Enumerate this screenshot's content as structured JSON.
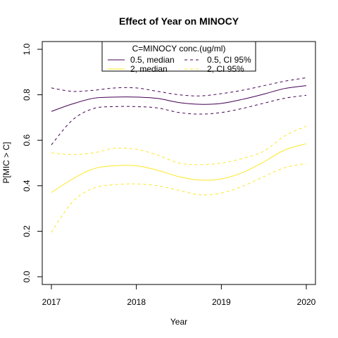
{
  "chart_data": {
    "type": "line",
    "title": "Effect of Year on MINOCY",
    "xlabel": "Year",
    "ylabel": "P[MIC > C]",
    "xlim": [
      2017,
      2020
    ],
    "ylim": [
      0,
      1
    ],
    "x_ticks": [
      "2017",
      "2018",
      "2019",
      "2020"
    ],
    "y_ticks": [
      "0.0",
      "0.2",
      "0.4",
      "0.6",
      "0.8",
      "1.0"
    ],
    "grid": false,
    "legend": {
      "title": "C=MINOCY conc.(ug/ml)",
      "placement": "top-center",
      "entries": [
        "0.5, median",
        "0.5, CI 95%",
        "2, median",
        "2, CI 95%"
      ]
    },
    "x": [
      2017.0,
      2017.25,
      2017.5,
      2017.75,
      2018.0,
      2018.25,
      2018.5,
      2018.75,
      2019.0,
      2019.25,
      2019.5,
      2019.75,
      2020.0
    ],
    "series": [
      {
        "name": "0.5, median",
        "color": "#440154",
        "dash": "solid",
        "values": [
          0.727,
          0.76,
          0.785,
          0.79,
          0.79,
          0.784,
          0.766,
          0.758,
          0.762,
          0.78,
          0.803,
          0.828,
          0.84
        ]
      },
      {
        "name": "0.5, CI 95%",
        "color": "#440154",
        "dash": "dashed",
        "values": [
          0.83,
          0.815,
          0.82,
          0.83,
          0.83,
          0.815,
          0.8,
          0.795,
          0.805,
          0.82,
          0.84,
          0.86,
          0.875
        ]
      },
      {
        "name": "0.5, CI 95%",
        "color": "#440154",
        "dash": "dashed",
        "values": [
          0.58,
          0.69,
          0.74,
          0.748,
          0.748,
          0.742,
          0.722,
          0.715,
          0.722,
          0.74,
          0.763,
          0.785,
          0.798
        ]
      },
      {
        "name": "2, median",
        "color": "#FDE725",
        "dash": "solid",
        "values": [
          0.37,
          0.43,
          0.475,
          0.488,
          0.488,
          0.468,
          0.44,
          0.425,
          0.43,
          0.458,
          0.505,
          0.558,
          0.585
        ]
      },
      {
        "name": "2, CI 95%",
        "color": "#FDE725",
        "dash": "dashed",
        "values": [
          0.545,
          0.537,
          0.545,
          0.565,
          0.56,
          0.535,
          0.5,
          0.493,
          0.5,
          0.52,
          0.552,
          0.62,
          0.662
        ]
      },
      {
        "name": "2, CI 95%",
        "color": "#FDE725",
        "dash": "dashed",
        "values": [
          0.195,
          0.33,
          0.39,
          0.405,
          0.408,
          0.4,
          0.38,
          0.36,
          0.368,
          0.398,
          0.44,
          0.48,
          0.498
        ]
      }
    ]
  }
}
